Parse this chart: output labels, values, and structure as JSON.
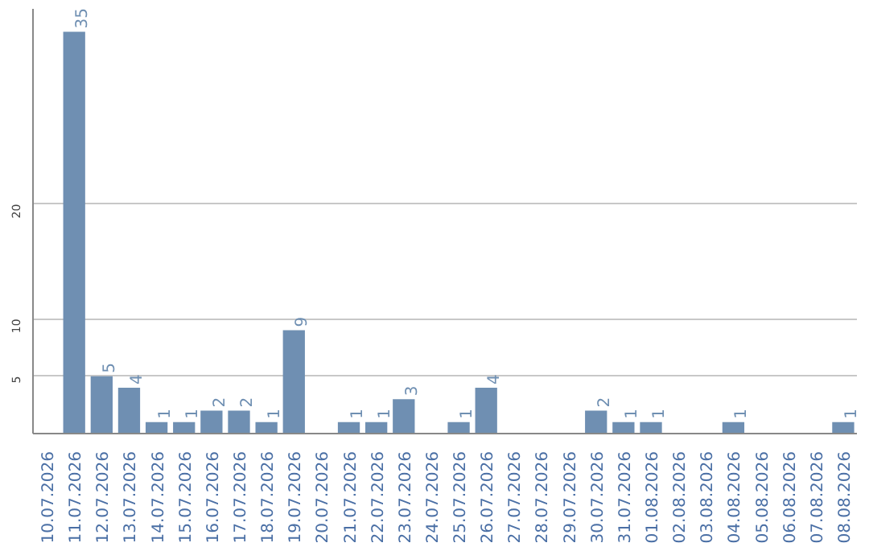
{
  "chart_data": {
    "type": "bar",
    "categories": [
      "10.07.2026",
      "11.07.2026",
      "12.07.2026",
      "13.07.2026",
      "14.07.2026",
      "15.07.2026",
      "16.07.2026",
      "17.07.2026",
      "18.07.2026",
      "19.07.2026",
      "20.07.2026",
      "21.07.2026",
      "22.07.2026",
      "23.07.2026",
      "24.07.2026",
      "25.07.2026",
      "26.07.2026",
      "27.07.2026",
      "28.07.2026",
      "29.07.2026",
      "30.07.2026",
      "31.07.2026",
      "01.08.2026",
      "02.08.2026",
      "03.08.2026",
      "04.08.2026",
      "05.08.2026",
      "06.08.2026",
      "07.08.2026",
      "08.08.2026"
    ],
    "values": [
      0,
      35,
      5,
      4,
      1,
      1,
      2,
      2,
      1,
      9,
      0,
      1,
      1,
      3,
      0,
      1,
      4,
      0,
      0,
      0,
      2,
      1,
      1,
      0,
      0,
      1,
      0,
      0,
      0,
      1
    ],
    "value_labels": [
      null,
      "35",
      "5",
      "4",
      "1",
      "1",
      "2",
      "2",
      "1",
      "9",
      null,
      "1",
      "1",
      "3",
      null,
      "1",
      "4",
      null,
      null,
      null,
      "2",
      "1",
      "1",
      null,
      null,
      "1",
      null,
      null,
      null,
      "1"
    ],
    "color": "#6f8fb2",
    "ylim": [
      0,
      37
    ],
    "yticks": [
      5,
      10,
      20
    ],
    "grid": "y"
  }
}
